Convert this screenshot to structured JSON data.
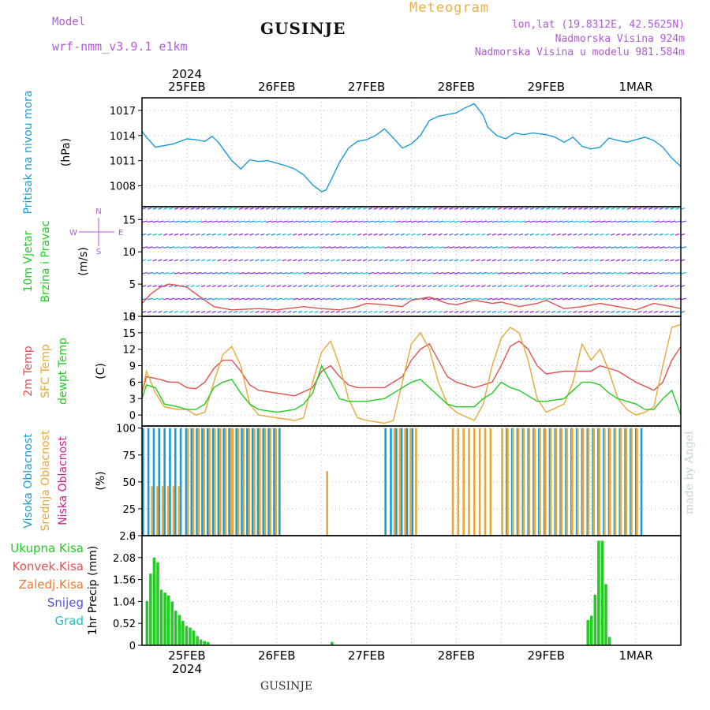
{
  "header": {
    "model_label": "Model",
    "model_name": "wrf-nmm_v3.9.1  e1km",
    "location_title": "GUSINJE",
    "meteogram_label": "Meteogram",
    "lonlat": "lon,lat (19.8312E, 42.5625N)",
    "elevation": "Nadmorska Visina 924m",
    "model_elevation": "Nadmorska Visina u modelu 981.584m"
  },
  "footer": {
    "station": "GUSINJE",
    "credit": "made by Angel"
  },
  "time_axis": {
    "year": "2024",
    "labels": [
      "25FEB",
      "26FEB",
      "27FEB",
      "28FEB",
      "29FEB",
      "1MAR"
    ],
    "start_day": 24.5,
    "end_day": 30.5
  },
  "chart_data": [
    {
      "id": "pressure",
      "type": "line",
      "labels": [
        {
          "text": "Pritisak na nivou mora",
          "color": "#1a9bd7"
        },
        {
          "text": "(hPa)",
          "color": "#000000"
        }
      ],
      "ylim": [
        1005.5,
        1018.5
      ],
      "yticks": [
        1008,
        1011,
        1014,
        1017
      ],
      "series": [
        {
          "color": "#1a9bd7",
          "x": [
            24.5,
            24.55,
            24.65,
            24.75,
            24.85,
            25.0,
            25.1,
            25.2,
            25.28,
            25.35,
            25.5,
            25.6,
            25.7,
            25.8,
            25.9,
            26.0,
            26.1,
            26.2,
            26.3,
            26.4,
            26.5,
            26.55,
            26.62,
            26.7,
            26.8,
            26.9,
            27.0,
            27.1,
            27.2,
            27.3,
            27.4,
            27.5,
            27.6,
            27.7,
            27.8,
            27.9,
            28.0,
            28.1,
            28.2,
            28.3,
            28.35,
            28.45,
            28.55,
            28.65,
            28.75,
            28.85,
            29.0,
            29.1,
            29.2,
            29.3,
            29.4,
            29.5,
            29.6,
            29.7,
            29.8,
            29.9,
            30.0,
            30.1,
            30.2,
            30.3,
            30.4,
            30.5
          ],
          "y": [
            1014.5,
            1013.8,
            1012.6,
            1012.8,
            1013.0,
            1013.6,
            1013.5,
            1013.3,
            1013.9,
            1013.2,
            1011.0,
            1010.0,
            1011.1,
            1010.9,
            1011.0,
            1010.7,
            1010.4,
            1010.0,
            1009.3,
            1008.1,
            1007.3,
            1007.5,
            1009.0,
            1010.8,
            1012.5,
            1013.3,
            1013.5,
            1014.0,
            1014.8,
            1013.7,
            1012.5,
            1013.0,
            1014.0,
            1015.8,
            1016.3,
            1016.5,
            1016.7,
            1017.3,
            1017.8,
            1016.4,
            1015.0,
            1014.0,
            1013.6,
            1014.3,
            1014.1,
            1014.3,
            1014.1,
            1013.8,
            1013.2,
            1013.8,
            1012.7,
            1012.4,
            1012.6,
            1013.7,
            1013.4,
            1013.2,
            1013.5,
            1013.8,
            1013.4,
            1012.6,
            1011.3,
            1010.3
          ]
        }
      ]
    },
    {
      "id": "wind",
      "type": "line",
      "labels": [
        {
          "text": "10m Vjetar",
          "color": "#22cc22"
        },
        {
          "text": "Brzina i Pravac",
          "color": "#22cc22"
        },
        {
          "text": "(m/s)",
          "color": "#000000"
        }
      ],
      "compass": {
        "n": "N",
        "s": "S",
        "w": "W",
        "e": "E"
      },
      "ylim": [
        0,
        17
      ],
      "yticks": [
        0,
        5,
        10,
        15
      ],
      "series": [
        {
          "color": "#e05050",
          "x": [
            24.5,
            24.6,
            24.7,
            24.8,
            24.9,
            25.0,
            25.1,
            25.2,
            25.3,
            25.5,
            25.8,
            26.0,
            26.3,
            26.5,
            26.7,
            26.9,
            27.0,
            27.2,
            27.4,
            27.5,
            27.7,
            27.9,
            28.0,
            28.2,
            28.4,
            28.5,
            28.7,
            28.9,
            29.0,
            29.2,
            29.4,
            29.6,
            29.8,
            30.0,
            30.2,
            30.4,
            30.5
          ],
          "y": [
            2.0,
            3.5,
            4.5,
            5.0,
            4.8,
            4.5,
            3.5,
            2.5,
            1.5,
            1.0,
            1.2,
            1.0,
            1.5,
            1.2,
            1.0,
            1.5,
            2.0,
            1.8,
            1.5,
            2.5,
            3.0,
            2.0,
            1.8,
            2.5,
            2.0,
            2.2,
            1.5,
            2.0,
            2.5,
            1.2,
            1.5,
            2.0,
            1.5,
            1.0,
            2.0,
            1.5,
            1.2
          ]
        }
      ]
    },
    {
      "id": "temperature",
      "type": "line",
      "labels": [
        {
          "text": "2m Temp",
          "color": "#e05050"
        },
        {
          "text": "SFC Temp",
          "color": "#e8a838"
        },
        {
          "text": "dewpt Temp",
          "color": "#22cc22"
        },
        {
          "text": "(C)",
          "color": "#000000"
        }
      ],
      "ylim": [
        -2,
        18
      ],
      "yticks": [
        0,
        3,
        6,
        9,
        12,
        15,
        18
      ],
      "series": [
        {
          "name": "2m Temp",
          "color": "#e05050",
          "x": [
            24.5,
            24.55,
            24.7,
            24.8,
            24.9,
            25.0,
            25.1,
            25.2,
            25.3,
            25.4,
            25.5,
            25.6,
            25.7,
            25.8,
            26.0,
            26.2,
            26.4,
            26.5,
            26.6,
            26.7,
            26.8,
            26.9,
            27.0,
            27.2,
            27.4,
            27.5,
            27.6,
            27.7,
            27.8,
            27.9,
            28.0,
            28.2,
            28.4,
            28.5,
            28.6,
            28.7,
            28.8,
            28.9,
            29.0,
            29.2,
            29.4,
            29.5,
            29.6,
            29.7,
            29.8,
            29.9,
            30.0,
            30.2,
            30.3,
            30.4,
            30.5
          ],
          "y": [
            4,
            7,
            6.5,
            6,
            6,
            5,
            4.8,
            6,
            8.5,
            10,
            10,
            8,
            5.5,
            4.5,
            4,
            3.5,
            5,
            8,
            9,
            7,
            5.5,
            5,
            5,
            5,
            7,
            10,
            12,
            13,
            10,
            7,
            6,
            5,
            6,
            9,
            12.5,
            13.5,
            12,
            9,
            7.5,
            8,
            8,
            8,
            9,
            8.5,
            8,
            7,
            6,
            4.5,
            6,
            10,
            12.5
          ]
        },
        {
          "name": "SFC Temp",
          "color": "#e8a838",
          "x": [
            24.5,
            24.55,
            24.65,
            24.75,
            24.9,
            25.0,
            25.1,
            25.2,
            25.3,
            25.4,
            25.5,
            25.6,
            25.7,
            25.8,
            26.0,
            26.2,
            26.3,
            26.4,
            26.5,
            26.6,
            26.7,
            26.8,
            26.9,
            27.0,
            27.2,
            27.3,
            27.4,
            27.5,
            27.6,
            27.7,
            27.8,
            27.9,
            28.0,
            28.2,
            28.3,
            28.4,
            28.5,
            28.6,
            28.7,
            28.8,
            28.9,
            29.0,
            29.2,
            29.3,
            29.4,
            29.5,
            29.6,
            29.7,
            29.8,
            29.9,
            30.0,
            30.1,
            30.2,
            30.3,
            30.4,
            30.5
          ],
          "y": [
            4,
            8,
            4,
            1.5,
            1,
            1,
            0,
            0.5,
            6,
            11,
            12.5,
            9,
            2,
            0,
            -0.5,
            -1,
            -0.5,
            6,
            11.5,
            13.5,
            9,
            3,
            -0.5,
            -1,
            -1.5,
            -1,
            6,
            13,
            15,
            12,
            6,
            2,
            0.5,
            -1,
            2,
            9,
            14,
            16,
            15,
            10,
            3,
            0.5,
            2,
            6,
            13,
            10,
            12,
            8,
            3,
            1,
            0,
            0.5,
            1.5,
            9,
            16,
            16.5
          ]
        },
        {
          "name": "dewpt Temp",
          "color": "#22cc22",
          "x": [
            24.5,
            24.55,
            24.65,
            24.75,
            24.9,
            25.0,
            25.1,
            25.2,
            25.3,
            25.4,
            25.5,
            25.6,
            25.7,
            25.8,
            26.0,
            26.2,
            26.3,
            26.4,
            26.5,
            26.6,
            26.7,
            26.8,
            26.9,
            27.0,
            27.2,
            27.3,
            27.4,
            27.5,
            27.6,
            27.7,
            27.8,
            27.9,
            28.0,
            28.2,
            28.3,
            28.4,
            28.5,
            28.6,
            28.7,
            28.8,
            28.9,
            29.0,
            29.2,
            29.3,
            29.4,
            29.5,
            29.6,
            29.7,
            29.8,
            29.9,
            30.0,
            30.1,
            30.2,
            30.3,
            30.4,
            30.5
          ],
          "y": [
            3,
            5.5,
            5,
            2,
            1.5,
            1,
            1,
            2,
            5,
            6,
            6.5,
            4,
            2,
            1,
            0.5,
            1,
            2,
            4,
            9,
            6,
            3,
            2.5,
            2.5,
            2.5,
            3,
            4,
            5,
            6,
            6.5,
            5,
            3.5,
            2,
            1.5,
            1.5,
            3,
            4,
            6,
            5,
            4.5,
            3.5,
            2.5,
            2.5,
            3,
            4.5,
            6,
            6,
            5.5,
            4,
            3,
            2.5,
            2,
            1,
            1,
            3,
            4.5,
            0
          ]
        }
      ]
    },
    {
      "id": "clouds",
      "type": "bar",
      "labels": [
        {
          "text": "Visoka Oblacnost",
          "color": "#1a9bd7"
        },
        {
          "text": "Srednja Oblacnost",
          "color": "#e8a838"
        },
        {
          "text": "Niska Oblacnost",
          "color": "#d0208c"
        },
        {
          "text": "(%)",
          "color": "#000000"
        }
      ],
      "ylim": [
        0,
        102
      ],
      "yticks": [
        0,
        25,
        50,
        75,
        100
      ],
      "series": [
        {
          "name": "Visoka Oblacnost",
          "color": "#1a9bd7",
          "segments": [
            [
              24.5,
              25.48,
              100
            ],
            [
              25.48,
              26.05,
              100
            ],
            [
              27.2,
              27.5,
              100
            ],
            [
              28.55,
              30.05,
              100
            ]
          ]
        },
        {
          "name": "Srednja Oblacnost",
          "color": "#e8a838",
          "segments": [
            [
              24.6,
              24.95,
              46
            ],
            [
              25.0,
              25.5,
              100
            ],
            [
              25.5,
              26.0,
              100
            ],
            [
              26.55,
              26.6,
              60
            ],
            [
              27.3,
              27.55,
              100
            ],
            [
              27.95,
              28.4,
              100
            ],
            [
              28.5,
              30.05,
              100
            ]
          ]
        },
        {
          "name": "Niska Oblacnost",
          "color": "#d0208c",
          "segments": []
        }
      ]
    },
    {
      "id": "precip",
      "type": "bar",
      "labels": [
        {
          "text": "Ukupna Kisa",
          "color": "#22cc22"
        },
        {
          "text": "Konvek.Kisa",
          "color": "#e05050"
        },
        {
          "text": "Zaledj.Kisa",
          "color": "#f07830"
        },
        {
          "text": "Snijeg",
          "color": "#5050e0"
        },
        {
          "text": "Grad",
          "color": "#20c0c0"
        },
        {
          "text": "1hr Precip (mm)",
          "color": "#000000"
        }
      ],
      "ylim": [
        0,
        2.6
      ],
      "yticks": [
        0,
        0.52,
        1.04,
        1.56,
        2.08,
        2.6
      ],
      "color": "#22cc22",
      "x": [
        24.54,
        24.58,
        24.62,
        24.66,
        24.7,
        24.74,
        24.78,
        24.82,
        24.86,
        24.9,
        24.94,
        24.98,
        25.02,
        25.06,
        25.1,
        25.14,
        25.18,
        25.22,
        26.6,
        29.45,
        29.49,
        29.53,
        29.57,
        29.61,
        29.65,
        29.69
      ],
      "values": [
        1.05,
        1.7,
        2.08,
        1.97,
        1.32,
        1.25,
        1.18,
        1.04,
        0.82,
        0.72,
        0.58,
        0.46,
        0.42,
        0.35,
        0.22,
        0.14,
        0.1,
        0.08,
        0.08,
        0.6,
        0.7,
        1.2,
        2.48,
        2.48,
        1.45,
        0.2
      ]
    }
  ]
}
